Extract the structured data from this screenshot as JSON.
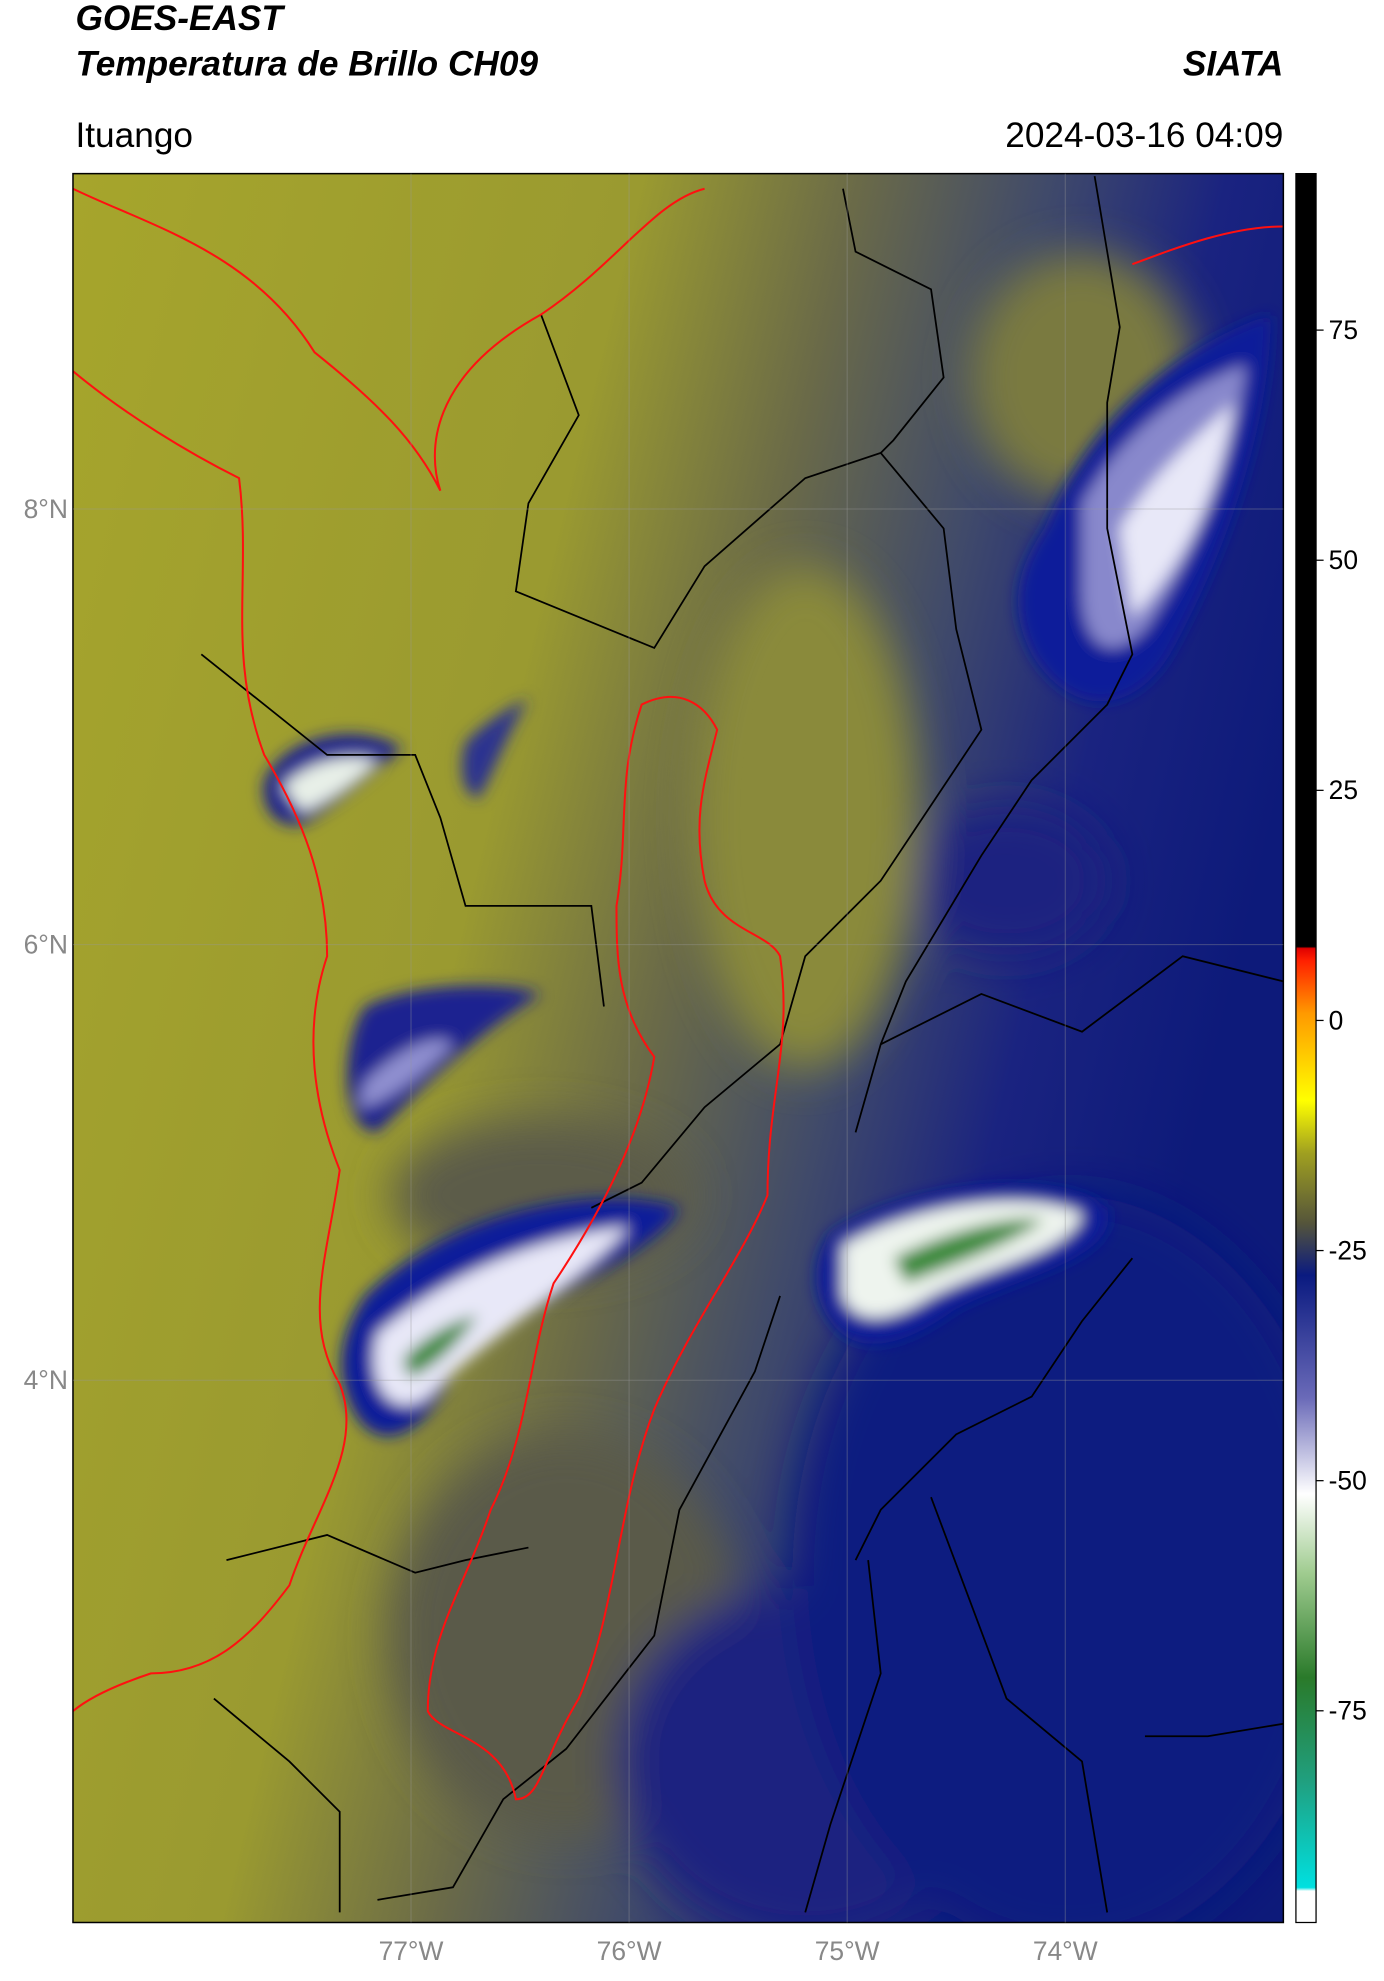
{
  "header": {
    "title": "GOES-EAST",
    "subtitle": "Temperatura de Brillo CH09",
    "brand": "SIATA",
    "location": "Ituango",
    "datetime": "2024-03-16 04:09"
  },
  "map": {
    "xlim": [
      -78.55,
      -73.0
    ],
    "ylim": [
      1.51,
      9.54
    ],
    "xticks": [
      {
        "value": -77,
        "label": "77°W"
      },
      {
        "value": -76,
        "label": "76°W"
      },
      {
        "value": -75,
        "label": "75°W"
      },
      {
        "value": -74,
        "label": "74°W"
      }
    ],
    "yticks": [
      {
        "value": 8,
        "label": "8°N"
      },
      {
        "value": 6,
        "label": "6°N"
      },
      {
        "value": 4,
        "label": "4°N"
      }
    ]
  },
  "colorbar": {
    "lim": [
      -98,
      92
    ],
    "ticks": [
      75,
      50,
      25,
      0,
      -25,
      -50,
      -75
    ]
  }
}
